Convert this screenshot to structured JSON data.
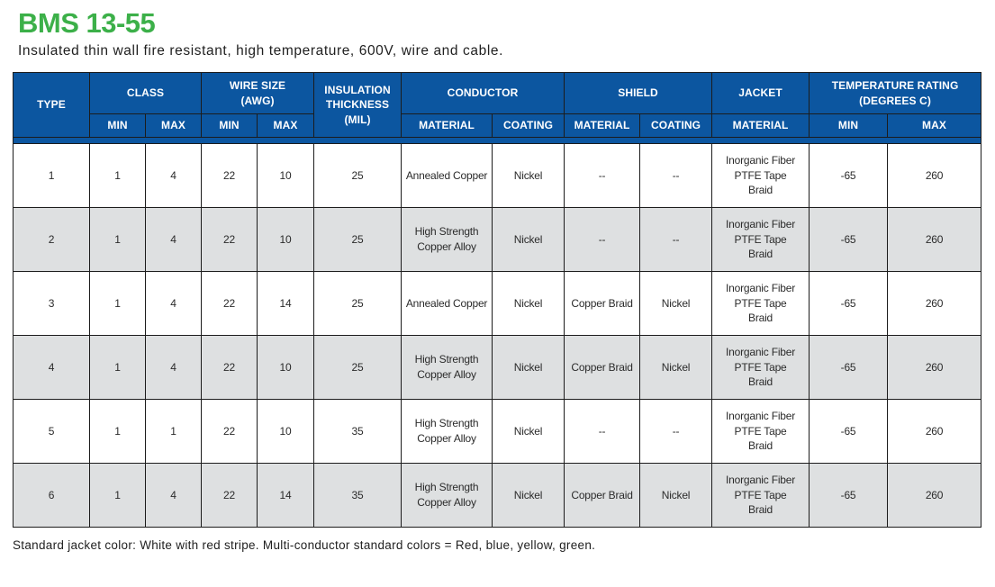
{
  "page": {
    "title": "BMS 13-55",
    "subtitle": "Insulated thin wall fire resistant, high temperature, 600V, wire and cable.",
    "footnote": "Standard jacket color: White with red stripe. Multi-conductor standard colors = Red, blue, yellow, green."
  },
  "colors": {
    "header_blue": "#0c56a0",
    "title_green": "#3cb049",
    "alt_row_gray": "#dee0e1",
    "grid_line": "#1c1c1c",
    "body_text": "#2b2b2b"
  },
  "table": {
    "groups": {
      "type": "TYPE",
      "class": "CLASS",
      "wire_size": "WIRE SIZE\n(AWG)",
      "insulation": "INSULATION\nTHICKNESS\n(MIL)",
      "conductor": "CONDUCTOR",
      "shield": "SHIELD",
      "jacket": "JACKET",
      "temperature": "TEMPERATURE RATING\n(DEGREES C)"
    },
    "subheaders": {
      "min": "MIN",
      "max": "MAX",
      "material": "MATERIAL",
      "coating": "COATING"
    },
    "rows": [
      [
        "1",
        "1",
        "4",
        "22",
        "10",
        "25",
        "Annealed Copper",
        "Nickel",
        "--",
        "--",
        "Inorganic Fiber\nPTFE Tape\nBraid",
        "-65",
        "260"
      ],
      [
        "2",
        "1",
        "4",
        "22",
        "10",
        "25",
        "High Strength\nCopper Alloy",
        "Nickel",
        "--",
        "--",
        "Inorganic Fiber\nPTFE Tape\nBraid",
        "-65",
        "260"
      ],
      [
        "3",
        "1",
        "4",
        "22",
        "14",
        "25",
        "Annealed Copper",
        "Nickel",
        "Copper Braid",
        "Nickel",
        "Inorganic Fiber\nPTFE Tape\nBraid",
        "-65",
        "260"
      ],
      [
        "4",
        "1",
        "4",
        "22",
        "10",
        "25",
        "High Strength\nCopper Alloy",
        "Nickel",
        "Copper Braid",
        "Nickel",
        "Inorganic Fiber\nPTFE Tape\nBraid",
        "-65",
        "260"
      ],
      [
        "5",
        "1",
        "1",
        "22",
        "10",
        "35",
        "High Strength\nCopper Alloy",
        "Nickel",
        "--",
        "--",
        "Inorganic Fiber\nPTFE Tape\nBraid",
        "-65",
        "260"
      ],
      [
        "6",
        "1",
        "4",
        "22",
        "14",
        "35",
        "High Strength\nCopper Alloy",
        "Nickel",
        "Copper Braid",
        "Nickel",
        "Inorganic Fiber\nPTFE Tape\nBraid",
        "-65",
        "260"
      ]
    ]
  }
}
